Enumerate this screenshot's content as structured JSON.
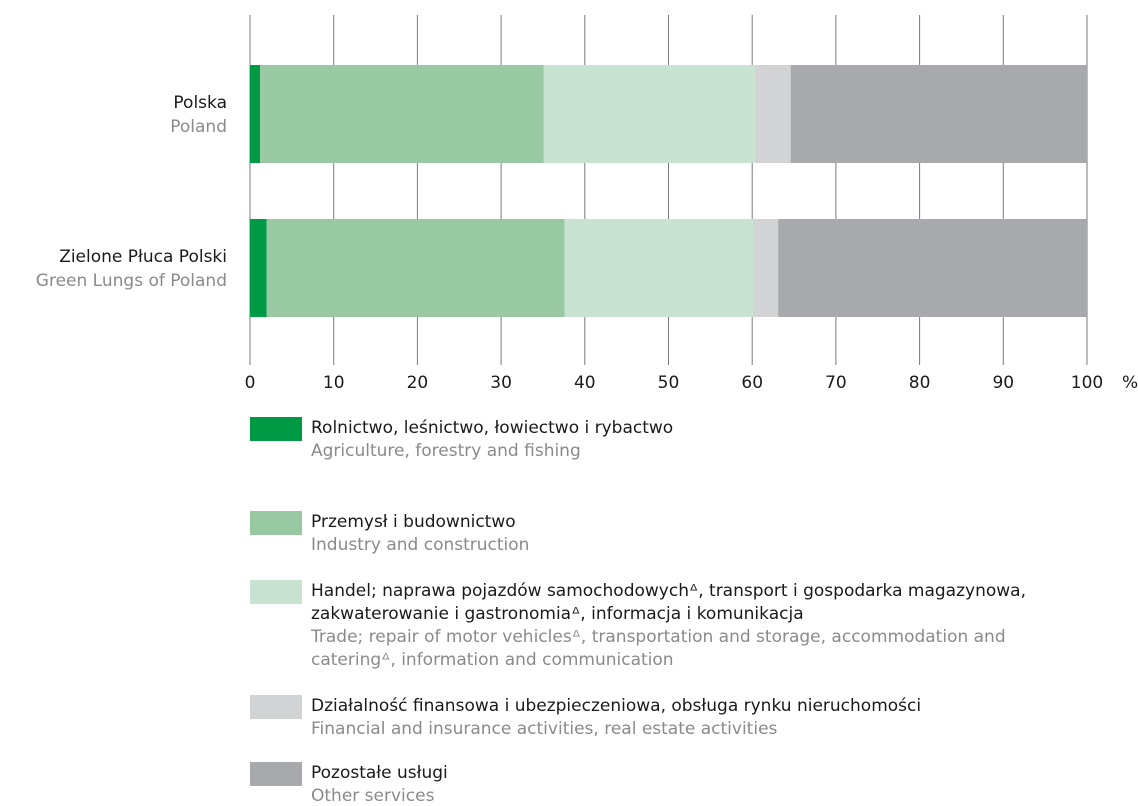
{
  "chart_data": {
    "type": "stacked-bar-horizontal",
    "categories": [
      "Polska",
      "Zielone Płuca Polski"
    ],
    "categories_en": [
      "Poland",
      "Green Lungs of Poland"
    ],
    "series": [
      {
        "name": "Rolnictwo, leśnictwo, łowiectwo i rybactwo",
        "name_en": "Agriculture, forestry and fishing",
        "color": "#009a44",
        "values": [
          1.2,
          2.0
        ]
      },
      {
        "name": "Przemysł i budownictwo",
        "name_en": "Industry and construction",
        "color": "#98c9a3",
        "values": [
          33.9,
          35.6
        ]
      },
      {
        "name": "Handel; naprawa pojazdów samochodowychᐞ, transport i gospodarka magazynowa, zakwaterowanie i gastronomiaᐞ, informacja i komunikacja",
        "name_en": "Trade; repair of motor vehiclesᐞ, transportation and storage, accommodation and cateringᐞ, information and communication",
        "color": "#c8e3d1",
        "values": [
          25.2,
          22.5
        ]
      },
      {
        "name": "Działalność finansowa i ubezpieczeniowa, obsługa rynku nieruchomości",
        "name_en": "Financial and insurance activities, real estate activities",
        "color": "#d1d3d4",
        "values": [
          4.3,
          3.0
        ]
      },
      {
        "name": "Pozostałe usługi",
        "name_en": "Other services",
        "color": "#a7a9ac",
        "values": [
          35.4,
          36.9
        ]
      }
    ],
    "xlim": [
      0,
      100
    ],
    "xticks": [
      0,
      10,
      20,
      30,
      40,
      50,
      60,
      70,
      80,
      90,
      100
    ],
    "x_unit": "%",
    "grid": true
  }
}
